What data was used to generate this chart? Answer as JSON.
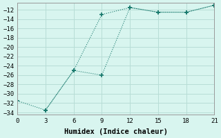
{
  "xlabel": "Humidex (Indice chaleur)",
  "background_color": "#d8f5ef",
  "grid_color": "#b8ddd6",
  "line_color": "#1a7a6e",
  "line1_x": [
    0,
    3,
    6,
    9,
    12,
    15,
    18,
    21
  ],
  "line1_y": [
    -31.5,
    -33.5,
    -25.0,
    -26.0,
    -11.5,
    -12.5,
    -12.5,
    -11.0
  ],
  "line2_x": [
    3,
    6,
    9,
    12,
    15,
    18,
    21
  ],
  "line2_y": [
    -33.5,
    -25.0,
    -13.0,
    -11.5,
    -12.5,
    -12.5,
    -11.0
  ],
  "xlim": [
    0,
    21
  ],
  "ylim": [
    -34.5,
    -10.5
  ],
  "xticks": [
    0,
    3,
    6,
    9,
    12,
    15,
    18,
    21
  ],
  "yticks": [
    -12,
    -14,
    -16,
    -18,
    -20,
    -22,
    -24,
    -26,
    -28,
    -30,
    -32,
    -34
  ],
  "font_family": "monospace",
  "tick_fontsize": 6.5,
  "label_fontsize": 7.5
}
